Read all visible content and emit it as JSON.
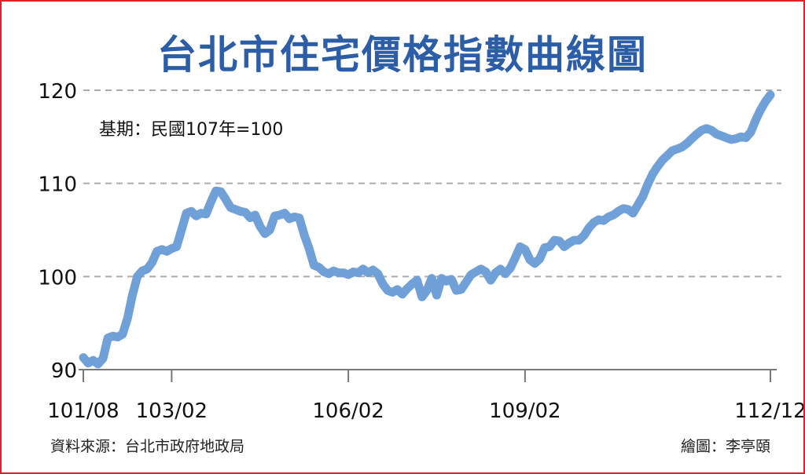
{
  "title": "台北市住宅價格指數曲線圖",
  "base_note": "基期：民國107年=100",
  "source": "資料來源：台北市政府地政局",
  "credit": "繪圖：李亭頤",
  "colors": {
    "line": "#6fa0d8",
    "title": "#2c5ea8",
    "border": "#e0202a",
    "grid": "#aaaaaa"
  },
  "chart_data": {
    "type": "line",
    "title": "台北市住宅價格指數曲線圖",
    "xlabel": "",
    "ylabel": "",
    "ylim": [
      90,
      120
    ],
    "yticks": [
      "90",
      "100",
      "110",
      "120"
    ],
    "xticks": [
      "101/08",
      "103/02",
      "106/02",
      "109/02",
      "112/12"
    ],
    "grid": true,
    "series": [
      {
        "values": [
          91.3,
          90.7,
          91.0,
          90.6,
          91.2,
          93.4,
          93.6,
          93.5,
          93.8,
          95.5,
          98.0,
          100.0,
          100.6,
          100.8,
          101.5,
          102.7,
          102.9,
          102.7,
          103.0,
          103.2,
          105.0,
          106.8,
          107.0,
          106.5,
          106.8,
          106.7,
          108.0,
          109.2,
          109.1,
          108.3,
          107.4,
          107.2,
          107.0,
          106.9,
          106.3,
          106.6,
          105.4,
          104.6,
          105.0,
          106.5,
          106.6,
          106.8,
          106.2,
          106.4,
          106.3,
          104.5,
          103.0,
          101.2,
          101.0,
          100.5,
          100.3,
          100.6,
          100.4,
          100.4,
          100.2,
          100.5,
          100.4,
          100.8,
          100.4,
          100.7,
          100.3,
          99.2,
          98.5,
          98.3,
          98.6,
          98.1,
          98.7,
          99.2,
          99.6,
          97.8,
          98.5,
          99.8,
          98.0,
          99.8,
          99.5,
          99.7,
          98.5,
          98.6,
          99.4,
          100.2,
          100.5,
          100.8,
          100.5,
          99.6,
          100.4,
          100.8,
          100.3,
          100.9,
          102.0,
          103.2,
          102.9,
          101.8,
          101.4,
          101.9,
          103.1,
          103.2,
          103.9,
          103.8,
          103.2,
          103.6,
          103.9,
          103.9,
          104.4,
          105.2,
          105.8,
          106.1,
          106.0,
          106.4,
          106.6,
          107.0,
          107.3,
          107.2,
          106.8,
          107.7,
          108.6,
          109.9,
          111.0,
          111.8,
          112.5,
          113.0,
          113.5,
          113.7,
          113.9,
          114.3,
          114.8,
          115.3,
          115.7,
          115.9,
          115.7,
          115.3,
          115.1,
          114.9,
          114.7,
          114.8,
          115.0,
          114.9,
          115.5,
          116.8,
          117.9,
          118.8,
          119.5
        ]
      }
    ]
  }
}
